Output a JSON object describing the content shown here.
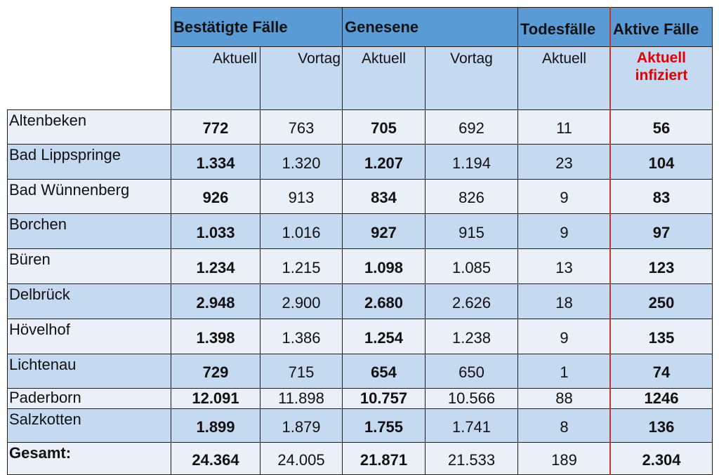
{
  "header": {
    "group1": "Bestätigte Fälle",
    "group2": "Genesene",
    "group3": "Todesfälle",
    "group4": "Aktive Fälle",
    "sub": [
      "Aktuell",
      "Vortag",
      "Aktuell",
      "Vortag",
      "Aktuell"
    ],
    "active_line1": "Aktuell",
    "active_line2": "infiziert"
  },
  "rows": [
    {
      "name": "Altenbeken",
      "vals": [
        "772",
        "763",
        "705",
        "692",
        "11",
        "56"
      ]
    },
    {
      "name": "Bad Lippspringe",
      "vals": [
        "1.334",
        "1.320",
        "1.207",
        "1.194",
        "23",
        "104"
      ]
    },
    {
      "name": "Bad Wünnenberg",
      "vals": [
        "926",
        "913",
        "834",
        "826",
        "9",
        "83"
      ]
    },
    {
      "name": "Borchen",
      "vals": [
        "1.033",
        "1.016",
        "927",
        "915",
        "9",
        "97"
      ]
    },
    {
      "name": "Büren",
      "vals": [
        "1.234",
        "1.215",
        "1.098",
        "1.085",
        "13",
        "123"
      ]
    },
    {
      "name": "Delbrück",
      "vals": [
        "2.948",
        "2.900",
        "2.680",
        "2.626",
        "18",
        "250"
      ]
    },
    {
      "name": "Hövelhof",
      "vals": [
        "1.398",
        "1.386",
        "1.254",
        "1.238",
        "9",
        "135"
      ]
    },
    {
      "name": "Lichtenau",
      "vals": [
        "729",
        "715",
        "654",
        "650",
        "1",
        "74"
      ]
    },
    {
      "name": "Paderborn",
      "vals": [
        "12.091",
        "11.898",
        "10.757",
        "10.566",
        "88",
        "1246"
      ]
    },
    {
      "name": "Salzkotten",
      "vals": [
        "1.899",
        "1.879",
        "1.755",
        "1.741",
        "8",
        "136"
      ]
    },
    {
      "name": "Gesamt:",
      "vals": [
        "24.364",
        "24.005",
        "21.871",
        "21.533",
        "189",
        "2.304"
      ]
    }
  ],
  "colors": {
    "header_blue": "#5b9bd5",
    "light_blue": "#c5d9f1",
    "pale": "#eaf0f7",
    "red": "#e00000"
  }
}
